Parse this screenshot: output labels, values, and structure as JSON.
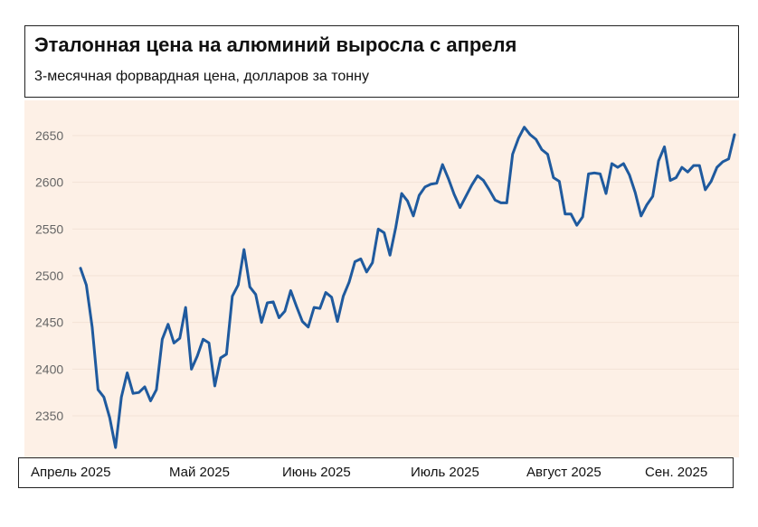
{
  "chart_data": {
    "type": "line",
    "title": "Эталонная цена на алюминий выросла с апреля",
    "subtitle": "3-месячная форвардная цена, долларов за тонну",
    "xlabel": "",
    "ylabel": "",
    "x_tick_labels": [
      "Апрель 2025",
      "Май 2025",
      "Июнь 2025",
      "Июль 2025",
      "Август 2025",
      "Сен. 2025"
    ],
    "y_ticks": [
      2350,
      2400,
      2450,
      2500,
      2550,
      2600,
      2650
    ],
    "ylim": [
      2315,
      2660
    ],
    "grid": "horizontal",
    "legend": "none",
    "line_color": "#1f5a9e",
    "background_color": "#fdf0e6",
    "series": [
      {
        "values": [
          2508,
          2490,
          2445,
          2378,
          2370,
          2348,
          2316,
          2370,
          2396,
          2374,
          2375,
          2381,
          2366,
          2378,
          2432,
          2448,
          2428,
          2433,
          2466,
          2400,
          2414,
          2432,
          2428,
          2382,
          2412,
          2416,
          2478,
          2490,
          2528,
          2488,
          2480,
          2450,
          2471,
          2472,
          2455,
          2462,
          2484,
          2467,
          2451,
          2445,
          2466,
          2465,
          2482,
          2477,
          2451,
          2478,
          2493,
          2515,
          2518,
          2504,
          2514,
          2550,
          2546,
          2522,
          2552,
          2588,
          2580,
          2564,
          2586,
          2595,
          2598,
          2599,
          2619,
          2604,
          2587,
          2573,
          2585,
          2597,
          2607,
          2602,
          2592,
          2581,
          2578,
          2578,
          2630,
          2647,
          2659,
          2651,
          2646,
          2635,
          2630,
          2605,
          2601,
          2566,
          2566,
          2554,
          2563,
          2609,
          2610,
          2609,
          2588,
          2620,
          2616,
          2620,
          2608,
          2589,
          2564,
          2576,
          2585,
          2623,
          2638,
          2602,
          2605,
          2616,
          2611,
          2618,
          2618,
          2592,
          2601,
          2616,
          2622,
          2625,
          2651
        ]
      }
    ]
  }
}
